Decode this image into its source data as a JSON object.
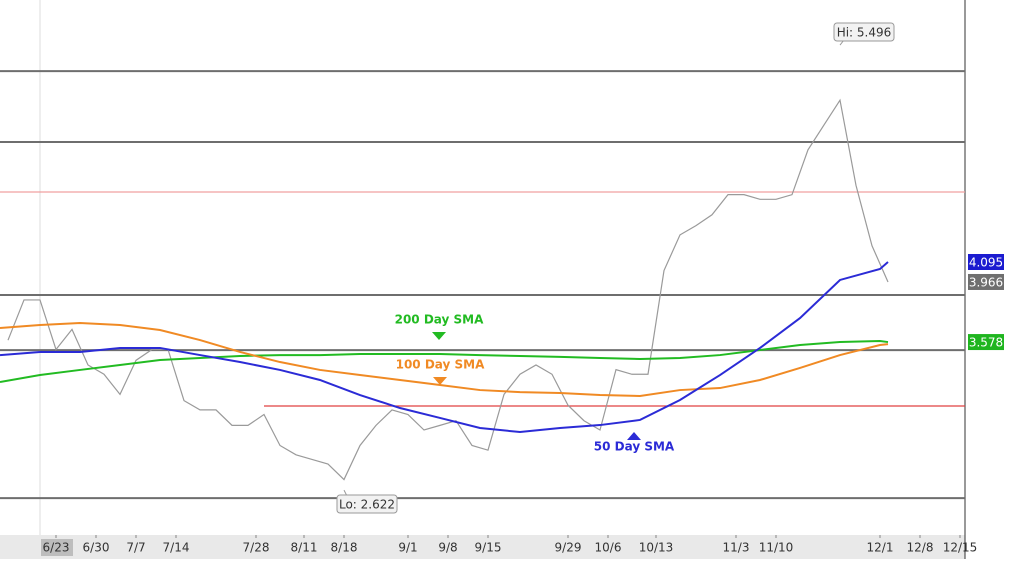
{
  "chart_data": {
    "type": "line",
    "xlim": [
      0,
      120.625
    ],
    "ylim": [
      2.332,
      5.787
    ],
    "xticks": [
      {
        "value": 7,
        "label": "6/23"
      },
      {
        "value": 12,
        "label": "6/30"
      },
      {
        "value": 17,
        "label": "7/7"
      },
      {
        "value": 22,
        "label": "7/14"
      },
      {
        "value": 32,
        "label": "7/28"
      },
      {
        "value": 38,
        "label": "8/11"
      },
      {
        "value": 43,
        "label": "8/18"
      },
      {
        "value": 51,
        "label": "9/1"
      },
      {
        "value": 56,
        "label": "9/8"
      },
      {
        "value": 61,
        "label": "9/15"
      },
      {
        "value": 71,
        "label": "9/29"
      },
      {
        "value": 76,
        "label": "10/6"
      },
      {
        "value": 82,
        "label": "10/13"
      },
      {
        "value": 92,
        "label": "11/3"
      },
      {
        "value": 97,
        "label": "11/10"
      },
      {
        "value": 110,
        "label": "12/1"
      },
      {
        "value": 115,
        "label": "12/8"
      },
      {
        "value": 120,
        "label": "12/15"
      }
    ],
    "levels": [
      {
        "value": 5.328,
        "color": "#6e6e6e"
      },
      {
        "value": 4.87,
        "color": "#6e6e6e"
      },
      {
        "value": 4.547,
        "color": "#f0a0a0"
      },
      {
        "value": 3.882,
        "color": "#6e6e6e"
      },
      {
        "value": 3.526,
        "color": "#6e6e6e"
      },
      {
        "value": 3.165,
        "color": "#e04040",
        "from": 33
      },
      {
        "value": 2.57,
        "color": "#6e6e6e"
      }
    ],
    "series": [
      {
        "color": "#9a9a9a",
        "x": [
          1,
          3,
          5,
          7,
          9,
          11,
          13,
          15,
          17,
          19,
          21,
          23,
          25,
          27,
          29,
          31,
          33,
          35,
          37,
          39,
          41,
          43,
          45,
          47,
          49,
          51,
          53,
          55,
          57,
          59,
          61,
          63,
          65,
          67,
          69,
          71,
          73,
          75,
          77,
          79,
          81,
          83,
          85,
          87,
          89,
          91,
          93,
          95,
          97,
          99,
          101,
          103,
          105,
          107,
          109,
          111
        ],
        "values": [
          3.59,
          3.85,
          3.85,
          3.53,
          3.66,
          3.43,
          3.37,
          3.24,
          3.46,
          3.53,
          3.53,
          3.2,
          3.14,
          3.14,
          3.04,
          3.04,
          3.11,
          2.91,
          2.85,
          2.82,
          2.79,
          2.69,
          2.91,
          3.04,
          3.14,
          3.11,
          3.01,
          3.04,
          3.07,
          2.91,
          2.88,
          3.24,
          3.37,
          3.43,
          3.37,
          3.17,
          3.07,
          3.01,
          3.4,
          3.37,
          3.37,
          4.04,
          4.27,
          4.33,
          4.4,
          4.53,
          4.53,
          4.5,
          4.5,
          4.53,
          4.82,
          4.98,
          5.14,
          4.59,
          4.2,
          3.966
        ]
      },
      {
        "name": "50 Day SMA",
        "color": "#2b2bd6",
        "x": [
          0,
          5,
          10,
          15,
          20,
          25,
          30,
          35,
          40,
          45,
          50,
          55,
          60,
          65,
          70,
          75,
          80,
          85,
          90,
          95,
          100,
          105,
          110,
          111
        ],
        "values": [
          3.494,
          3.514,
          3.514,
          3.54,
          3.54,
          3.494,
          3.449,
          3.398,
          3.333,
          3.236,
          3.152,
          3.088,
          3.023,
          2.997,
          3.023,
          3.042,
          3.075,
          3.204,
          3.365,
          3.54,
          3.733,
          3.979,
          4.05,
          4.095
        ]
      },
      {
        "name": "100 Day SMA",
        "color": "#f08a24",
        "x": [
          0,
          5,
          10,
          15,
          20,
          25,
          30,
          35,
          40,
          45,
          50,
          55,
          60,
          65,
          70,
          75,
          80,
          85,
          90,
          95,
          100,
          105,
          110,
          111
        ],
        "values": [
          3.669,
          3.688,
          3.701,
          3.688,
          3.656,
          3.591,
          3.514,
          3.449,
          3.398,
          3.365,
          3.333,
          3.301,
          3.268,
          3.255,
          3.249,
          3.236,
          3.23,
          3.268,
          3.281,
          3.333,
          3.411,
          3.494,
          3.559,
          3.565
        ]
      },
      {
        "name": "200 Day SMA",
        "color": "#22bb22",
        "x": [
          0,
          5,
          10,
          15,
          20,
          25,
          30,
          35,
          40,
          45,
          50,
          55,
          60,
          65,
          70,
          75,
          80,
          85,
          90,
          95,
          100,
          105,
          110,
          111
        ],
        "values": [
          3.32,
          3.365,
          3.398,
          3.43,
          3.462,
          3.475,
          3.488,
          3.494,
          3.494,
          3.501,
          3.501,
          3.501,
          3.494,
          3.488,
          3.482,
          3.475,
          3.469,
          3.475,
          3.494,
          3.527,
          3.559,
          3.578,
          3.585,
          3.578
        ]
      }
    ],
    "annotations": [
      {
        "text": "Hi: 5.496",
        "x": 105,
        "value": 5.496
      },
      {
        "text": "Lo: 2.622",
        "x": 43,
        "value": 2.622
      }
    ]
  }
}
